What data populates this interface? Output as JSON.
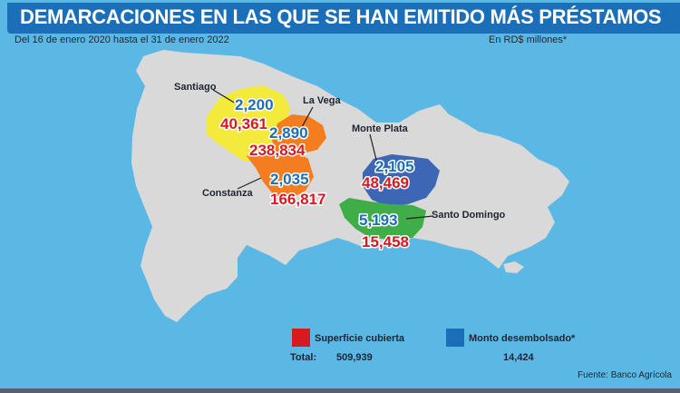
{
  "title": "DEMARCACIONES EN LAS QUE SE HAN EMITIDO MÁS PRÉSTAMOS",
  "period": "Del 16 de enero 2020 hasta el 31 de enero 2022",
  "units": "En RD$ millones*",
  "source": "Fuente: Banco Agrícola",
  "colors": {
    "background": "#5bb8e5",
    "title_bar": "#1a6fb8",
    "island": "#d9d9d9",
    "coverage": "#d71920",
    "disbursed": "#1a6fb8"
  },
  "regions": [
    {
      "id": "santiago",
      "name": "Santiago",
      "disbursed": "2,200",
      "coverage": "40,361",
      "fill": "#f4ea3c"
    },
    {
      "id": "la-vega",
      "name": "La Vega",
      "disbursed": "2,890",
      "coverage": "238,834",
      "fill": "#f47d20"
    },
    {
      "id": "constanza",
      "name": "Constanza",
      "disbursed": "2,035",
      "coverage": "166,817",
      "fill": "#f47d20"
    },
    {
      "id": "monte-plata",
      "name": "Monte Plata",
      "disbursed": "2,105",
      "coverage": "48,469",
      "fill": "#3d67b4"
    },
    {
      "id": "santo-domingo",
      "name": "Santo Domingo",
      "disbursed": "5,193",
      "coverage": "15,458",
      "fill": "#3fae49"
    }
  ],
  "legend": {
    "coverage_label": "Superficie cubierta",
    "disbursed_label": "Monto desembolsado*",
    "total_label": "Total:",
    "coverage_total": "509,939",
    "disbursed_total": "14,424"
  }
}
